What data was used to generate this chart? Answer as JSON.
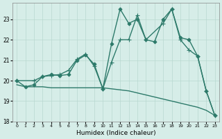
{
  "xlabel": "Humidex (Indice chaleur)",
  "bg_color": "#d6ede8",
  "line_color": "#2d7a6a",
  "grid_color": "#b8d8d0",
  "xlim": [
    -0.5,
    23.5
  ],
  "ylim": [
    18.0,
    23.8
  ],
  "yticks": [
    18,
    19,
    20,
    21,
    22,
    23
  ],
  "xticks": [
    0,
    1,
    2,
    3,
    4,
    5,
    6,
    7,
    8,
    9,
    10,
    11,
    12,
    13,
    14,
    15,
    16,
    17,
    18,
    19,
    20,
    21,
    22,
    23
  ],
  "series": [
    {
      "x": [
        0,
        1,
        2,
        3,
        4,
        5,
        6,
        7,
        8,
        9,
        10,
        11,
        12,
        13,
        14,
        15,
        16,
        17,
        18,
        19,
        20,
        21,
        22,
        23
      ],
      "y": [
        20.0,
        19.7,
        19.8,
        20.2,
        20.3,
        20.25,
        20.3,
        21.0,
        21.25,
        20.8,
        19.6,
        21.8,
        23.5,
        22.8,
        23.0,
        22.0,
        21.9,
        23.0,
        23.5,
        22.1,
        22.0,
        21.2,
        19.5,
        18.3
      ],
      "marker": "D",
      "markersize": 2.5,
      "linewidth": 1.0
    },
    {
      "x": [
        0,
        2,
        3,
        4,
        5,
        6,
        7,
        8,
        9,
        10,
        11,
        12,
        13,
        14,
        15,
        17,
        18,
        19,
        20,
        21,
        22,
        23
      ],
      "y": [
        20.0,
        20.0,
        20.2,
        20.25,
        20.3,
        20.5,
        21.05,
        21.3,
        20.7,
        19.6,
        20.9,
        22.0,
        22.0,
        23.2,
        22.0,
        22.8,
        23.5,
        22.0,
        21.5,
        21.2,
        19.5,
        18.3
      ],
      "marker": "+",
      "markersize": 4,
      "linewidth": 1.0
    },
    {
      "x": [
        0,
        1,
        2,
        3,
        4,
        5,
        6,
        7,
        8,
        9,
        10,
        11,
        12,
        13,
        14,
        15,
        16,
        17,
        18,
        19,
        20,
        21,
        22,
        23
      ],
      "y": [
        19.8,
        19.7,
        19.7,
        19.7,
        19.65,
        19.65,
        19.65,
        19.65,
        19.65,
        19.65,
        19.65,
        19.6,
        19.55,
        19.5,
        19.4,
        19.3,
        19.2,
        19.1,
        19.0,
        18.9,
        18.8,
        18.7,
        18.55,
        18.3
      ],
      "marker": null,
      "markersize": 0,
      "linewidth": 1.0
    }
  ]
}
